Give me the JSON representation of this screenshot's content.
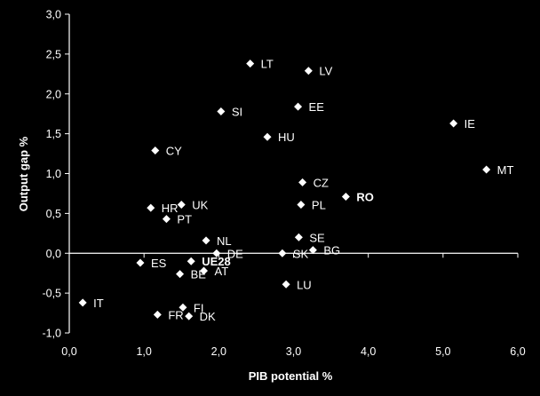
{
  "chart_data": {
    "type": "scatter",
    "title": "",
    "xlabel": "PIB potential %",
    "ylabel": "Output gap %",
    "xlim": [
      0,
      6
    ],
    "ylim": [
      -1,
      3
    ],
    "x_ticks": [
      "0,0",
      "1,0",
      "2,0",
      "3,0",
      "4,0",
      "5,0",
      "6,0"
    ],
    "y_ticks": [
      "3,0",
      "2,5",
      "2,0",
      "1,5",
      "1,0",
      "0,5",
      "0,0",
      "-0,5",
      "-1,0"
    ],
    "grid": false,
    "marker": "diamond",
    "marker_color": "#ffffff",
    "background": "#000000",
    "points": [
      {
        "label": "LT",
        "x": 2.42,
        "y": 2.38
      },
      {
        "label": "LV",
        "x": 3.2,
        "y": 2.29
      },
      {
        "label": "EE",
        "x": 3.06,
        "y": 1.84
      },
      {
        "label": "SI",
        "x": 2.03,
        "y": 1.78
      },
      {
        "label": "IE",
        "x": 5.14,
        "y": 1.63
      },
      {
        "label": "HU",
        "x": 2.65,
        "y": 1.46
      },
      {
        "label": "CY",
        "x": 1.15,
        "y": 1.29
      },
      {
        "label": "MT",
        "x": 5.58,
        "y": 1.05
      },
      {
        "label": "CZ",
        "x": 3.12,
        "y": 0.89
      },
      {
        "label": "RO",
        "x": 3.7,
        "y": 0.71,
        "bold": true
      },
      {
        "label": "UK",
        "x": 1.5,
        "y": 0.61
      },
      {
        "label": "PL",
        "x": 3.1,
        "y": 0.61
      },
      {
        "label": "HR",
        "x": 1.09,
        "y": 0.57
      },
      {
        "label": "PT",
        "x": 1.3,
        "y": 0.43
      },
      {
        "label": "SE",
        "x": 3.07,
        "y": 0.2
      },
      {
        "label": "NL",
        "x": 1.83,
        "y": 0.16
      },
      {
        "label": "BG",
        "x": 3.26,
        "y": 0.04
      },
      {
        "label": "DE",
        "x": 1.97,
        "y": 0.0
      },
      {
        "label": "SK",
        "x": 2.85,
        "y": 0.0
      },
      {
        "label": "ES",
        "x": 0.95,
        "y": -0.12
      },
      {
        "label": "UE28",
        "x": 1.63,
        "y": -0.1,
        "bold": true
      },
      {
        "label": "AT",
        "x": 1.8,
        "y": -0.22
      },
      {
        "label": "BE",
        "x": 1.48,
        "y": -0.26
      },
      {
        "label": "LU",
        "x": 2.9,
        "y": -0.39
      },
      {
        "label": "IT",
        "x": 0.18,
        "y": -0.62
      },
      {
        "label": "FI",
        "x": 1.52,
        "y": -0.68
      },
      {
        "label": "FR",
        "x": 1.18,
        "y": -0.77
      },
      {
        "label": "DK",
        "x": 1.6,
        "y": -0.79
      }
    ]
  }
}
